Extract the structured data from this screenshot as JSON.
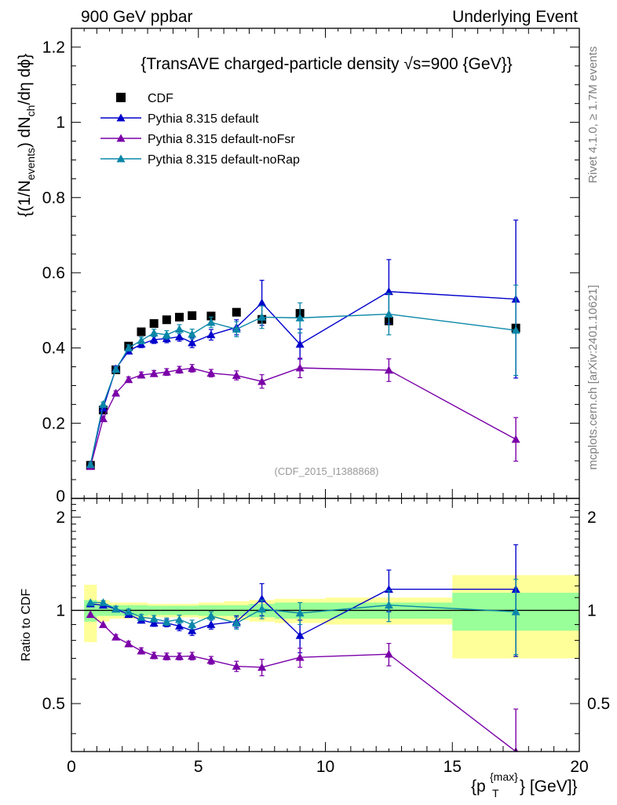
{
  "header": {
    "left": "900 GeV ppbar",
    "right": "Underlying Event"
  },
  "side_labels": {
    "rivet": "Rivet 4.1.0, ≥ 1.7M events",
    "mcplots": "mcplots.cern.ch [arXiv:2401.10621]"
  },
  "colors": {
    "cdf": "#000000",
    "default": "#0000cc",
    "noFsr": "#7a00a8",
    "noRap": "#0a87a8",
    "band_outer": "#ffff99",
    "band_inner": "#99ff99"
  },
  "chart_data": {
    "type": "line",
    "title": "{TransAVE charged-particle density √s=900 {GeV}}",
    "watermark": "(CDF_2015_I1388868)",
    "ylabel": {
      "main": "{(1/N",
      "events_sub": "events",
      "mid": ") dN",
      "ch_sub": "ch",
      "end": "/dη  dϕ}"
    },
    "xlabel": {
      "main": "{p",
      "T_sub": "T",
      "max_sup": "{max}",
      "end": "} [GeV]}"
    },
    "xlim": [
      0,
      20
    ],
    "x_ticks": [
      "0",
      "5",
      "10",
      "15",
      "20"
    ],
    "main_panel": {
      "ylim": [
        0,
        1.25
      ],
      "y_ticks": [
        "0",
        "0.2",
        "0.4",
        "0.6",
        "0.8",
        "1",
        "1.2"
      ],
      "y_tick_values": [
        0,
        0.2,
        0.4,
        0.6,
        0.8,
        1.0,
        1.2
      ]
    },
    "ratio_panel": {
      "ylabel": "Ratio to CDF",
      "ylim": [
        0.35,
        2.3
      ],
      "y_ticks": [
        "0.5",
        "1",
        "2"
      ],
      "y_tick_values": [
        0.5,
        1,
        2
      ]
    },
    "bins": {
      "lo": [
        0.5,
        1.0,
        1.5,
        2.0,
        2.5,
        3.0,
        3.5,
        4.0,
        4.5,
        5.0,
        6.0,
        7.0,
        8.0,
        10.0,
        15.0
      ],
      "hi": [
        1.0,
        1.5,
        2.0,
        2.5,
        3.0,
        3.5,
        4.0,
        4.5,
        5.0,
        6.0,
        7.0,
        8.0,
        10.0,
        15.0,
        20.0
      ],
      "band_outer": [
        0.21,
        0.08,
        0.06,
        0.06,
        0.06,
        0.05,
        0.05,
        0.05,
        0.05,
        0.06,
        0.07,
        0.08,
        0.09,
        0.1,
        0.3
      ],
      "band_inner": [
        0.08,
        0.04,
        0.04,
        0.04,
        0.04,
        0.035,
        0.035,
        0.035,
        0.035,
        0.04,
        0.04,
        0.05,
        0.06,
        0.06,
        0.14
      ]
    },
    "series": [
      {
        "key": "cdf",
        "name": "CDF",
        "marker": "square",
        "x": [
          0.75,
          1.25,
          1.75,
          2.25,
          2.75,
          3.25,
          3.75,
          4.25,
          4.75,
          5.5,
          6.5,
          7.5,
          9.0,
          12.5,
          17.5
        ],
        "y": [
          0.088,
          0.235,
          0.342,
          0.405,
          0.443,
          0.465,
          0.475,
          0.482,
          0.486,
          0.485,
          0.495,
          0.476,
          0.492,
          0.472,
          0.453
        ],
        "err": [
          0,
          0,
          0,
          0,
          0,
          0,
          0,
          0,
          0,
          0,
          0,
          0,
          0,
          0,
          0
        ]
      },
      {
        "key": "default",
        "name": "Pythia 8.315 default",
        "marker": "triangle",
        "x": [
          0.75,
          1.25,
          1.75,
          2.25,
          2.75,
          3.25,
          3.75,
          4.25,
          4.75,
          5.5,
          6.5,
          7.5,
          9.0,
          12.5,
          17.5
        ],
        "y": [
          0.09,
          0.24,
          0.345,
          0.392,
          0.41,
          0.422,
          0.425,
          0.43,
          0.414,
          0.435,
          0.455,
          0.52,
          0.41,
          0.55,
          0.53
        ],
        "err": [
          0.005,
          0.006,
          0.007,
          0.008,
          0.009,
          0.01,
          0.011,
          0.012,
          0.013,
          0.014,
          0.02,
          0.06,
          0.04,
          0.085,
          0.21
        ],
        "ratio": [
          1.05,
          1.04,
          1.01,
          0.97,
          0.93,
          0.91,
          0.91,
          0.89,
          0.86,
          0.9,
          0.92,
          1.09,
          0.83,
          1.17,
          1.17
        ],
        "ratio_err": [
          0.01,
          0.015,
          0.02,
          0.02,
          0.02,
          0.022,
          0.025,
          0.03,
          0.03,
          0.03,
          0.04,
          0.13,
          0.1,
          0.18,
          0.46
        ]
      },
      {
        "key": "noFsr",
        "name": "Pythia 8.315 default-noFsr",
        "marker": "triangle",
        "x": [
          0.75,
          1.25,
          1.75,
          2.25,
          2.75,
          3.25,
          3.75,
          4.25,
          4.75,
          5.5,
          6.5,
          7.5,
          9.0,
          12.5,
          17.5
        ],
        "y": [
          0.085,
          0.212,
          0.28,
          0.316,
          0.328,
          0.332,
          0.336,
          0.342,
          0.346,
          0.333,
          0.327,
          0.311,
          0.347,
          0.341,
          0.157
        ],
        "err": [
          0.004,
          0.005,
          0.006,
          0.007,
          0.008,
          0.008,
          0.009,
          0.009,
          0.01,
          0.01,
          0.012,
          0.018,
          0.026,
          0.03,
          0.058
        ],
        "ratio": [
          0.97,
          0.9,
          0.82,
          0.78,
          0.74,
          0.715,
          0.71,
          0.71,
          0.712,
          0.69,
          0.66,
          0.655,
          0.705,
          0.722,
          0.35
        ],
        "ratio_err": [
          0.01,
          0.012,
          0.015,
          0.015,
          0.017,
          0.017,
          0.018,
          0.018,
          0.02,
          0.02,
          0.025,
          0.04,
          0.05,
          0.06,
          0.13
        ]
      },
      {
        "key": "noRap",
        "name": "Pythia 8.315 default-noRap",
        "marker": "triangle",
        "x": [
          0.75,
          1.25,
          1.75,
          2.25,
          2.75,
          3.25,
          3.75,
          4.25,
          4.75,
          5.5,
          6.5,
          7.5,
          9.0,
          12.5,
          17.5
        ],
        "y": [
          0.09,
          0.25,
          0.343,
          0.4,
          0.42,
          0.44,
          0.435,
          0.45,
          0.437,
          0.468,
          0.45,
          0.482,
          0.48,
          0.49,
          0.447
        ],
        "err": [
          0.005,
          0.006,
          0.007,
          0.008,
          0.009,
          0.01,
          0.011,
          0.012,
          0.013,
          0.014,
          0.02,
          0.03,
          0.04,
          0.055,
          0.12
        ],
        "ratio": [
          1.06,
          1.06,
          1.01,
          0.99,
          0.95,
          0.94,
          0.92,
          0.935,
          0.9,
          0.96,
          0.91,
          1.01,
          0.98,
          1.04,
          0.99
        ],
        "ratio_err": [
          0.01,
          0.015,
          0.02,
          0.02,
          0.02,
          0.022,
          0.025,
          0.03,
          0.03,
          0.03,
          0.04,
          0.07,
          0.08,
          0.12,
          0.27
        ]
      }
    ],
    "legend_order": [
      "cdf",
      "default",
      "noFsr",
      "noRap"
    ],
    "legend_position": "top-left"
  }
}
